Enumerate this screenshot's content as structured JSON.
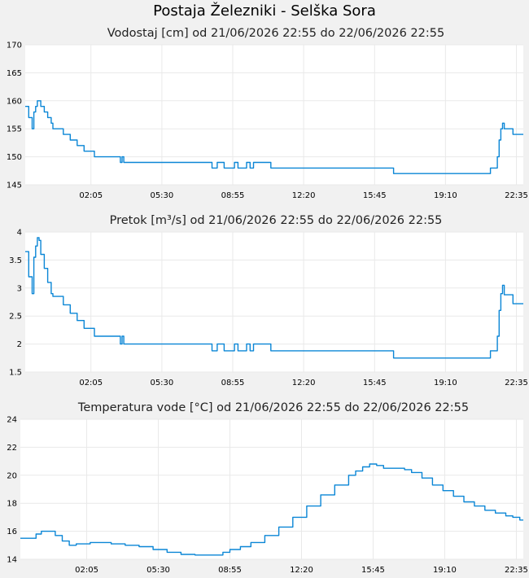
{
  "page": {
    "title": "Postaja Železniki - Selška Sora",
    "series_color": "#0a86d6"
  },
  "chart_data": [
    {
      "type": "line",
      "title": "Vodostaj [cm] od 21/06/2026 22:55 do 22/06/2026 22:55",
      "xlabel": "",
      "ylabel": "",
      "xlim": [
        0,
        1440
      ],
      "ylim": [
        145,
        170
      ],
      "yticks": [
        145,
        150,
        155,
        160,
        165,
        170
      ],
      "ytick_labels": [
        "145",
        "150",
        "155",
        "160",
        "165",
        "170"
      ],
      "xticks": [
        190,
        395,
        600,
        805,
        1010,
        1215,
        1420
      ],
      "xtick_labels": [
        "02:05",
        "05:30",
        "08:55",
        "12:20",
        "15:45",
        "19:10",
        "22:35"
      ],
      "grid": true,
      "series": [
        {
          "x": [
            0,
            10,
            20,
            25,
            30,
            35,
            40,
            45,
            55,
            65,
            75,
            80,
            90,
            110,
            130,
            150,
            170,
            185,
            200,
            215,
            260,
            275,
            280,
            285,
            300,
            420,
            530,
            540,
            550,
            555,
            575,
            600,
            605,
            615,
            630,
            640,
            650,
            660,
            670,
            700,
            710,
            720,
            1060,
            1065,
            1250,
            1340,
            1345,
            1360,
            1365,
            1370,
            1375,
            1380,
            1385,
            1400,
            1410,
            1440
          ],
          "y": [
            159,
            157,
            155,
            158,
            159,
            160,
            160,
            159,
            158,
            157,
            156,
            155,
            155,
            154,
            153,
            152,
            151,
            151,
            150,
            150,
            150,
            149,
            150,
            149,
            149,
            149,
            149,
            148,
            148,
            149,
            148,
            148,
            149,
            148,
            148,
            149,
            148,
            149,
            149,
            149,
            148,
            148,
            148,
            147,
            147,
            147,
            148,
            148,
            150,
            153,
            155,
            156,
            155,
            155,
            154,
            154
          ]
        }
      ]
    },
    {
      "type": "line",
      "title": "Pretok [m³/s] od 21/06/2026 22:55 do 22/06/2026 22:55",
      "xlabel": "",
      "ylabel": "",
      "xlim": [
        0,
        1440
      ],
      "ylim": [
        1.5,
        4
      ],
      "yticks": [
        1.5,
        2,
        2.5,
        3,
        3.5,
        4
      ],
      "ytick_labels": [
        "1.5",
        "2",
        "2.5",
        "3",
        "3.5",
        "4"
      ],
      "xticks": [
        190,
        395,
        600,
        805,
        1010,
        1215,
        1420
      ],
      "xtick_labels": [
        "02:05",
        "05:30",
        "08:55",
        "12:20",
        "15:45",
        "19:10",
        "22:35"
      ],
      "grid": true,
      "series": [
        {
          "x": [
            0,
            10,
            20,
            25,
            30,
            35,
            40,
            45,
            55,
            65,
            75,
            80,
            90,
            110,
            130,
            150,
            170,
            185,
            200,
            215,
            260,
            275,
            280,
            285,
            300,
            420,
            530,
            540,
            550,
            555,
            575,
            600,
            605,
            615,
            630,
            640,
            650,
            660,
            670,
            700,
            710,
            720,
            1060,
            1065,
            1250,
            1340,
            1345,
            1360,
            1365,
            1370,
            1375,
            1380,
            1385,
            1400,
            1410,
            1440
          ],
          "y": [
            3.65,
            3.2,
            2.9,
            3.55,
            3.75,
            3.9,
            3.85,
            3.6,
            3.35,
            3.1,
            2.9,
            2.85,
            2.85,
            2.7,
            2.55,
            2.42,
            2.28,
            2.28,
            2.14,
            2.14,
            2.14,
            2.0,
            2.14,
            2.0,
            2.0,
            2.0,
            2.0,
            1.88,
            1.88,
            2.0,
            1.88,
            1.88,
            2.0,
            1.88,
            1.88,
            2.0,
            1.88,
            2.0,
            2.0,
            2.0,
            1.88,
            1.88,
            1.88,
            1.75,
            1.75,
            1.75,
            1.88,
            1.88,
            2.14,
            2.6,
            2.9,
            3.05,
            2.88,
            2.88,
            2.72,
            2.72
          ]
        }
      ]
    },
    {
      "type": "line",
      "title": "Temperatura vode [°C] od 21/06/2026 22:55 do 22/06/2026 22:55",
      "xlabel": "",
      "ylabel": "",
      "xlim": [
        0,
        1440
      ],
      "ylim": [
        14,
        24
      ],
      "yticks": [
        14,
        16,
        18,
        20,
        22,
        24
      ],
      "ytick_labels": [
        "14",
        "16",
        "18",
        "20",
        "22",
        "24"
      ],
      "xticks": [
        190,
        395,
        600,
        805,
        1010,
        1215,
        1420
      ],
      "xtick_labels": [
        "02:05",
        "05:30",
        "08:55",
        "12:20",
        "15:45",
        "19:10",
        "22:35"
      ],
      "grid": true,
      "series": [
        {
          "x": [
            0,
            25,
            45,
            60,
            80,
            100,
            120,
            140,
            160,
            180,
            200,
            230,
            260,
            300,
            340,
            380,
            420,
            460,
            500,
            540,
            560,
            580,
            600,
            630,
            660,
            700,
            740,
            780,
            820,
            860,
            900,
            940,
            960,
            980,
            1000,
            1020,
            1040,
            1060,
            1080,
            1100,
            1120,
            1150,
            1180,
            1210,
            1240,
            1270,
            1300,
            1330,
            1360,
            1390,
            1410,
            1430,
            1440
          ],
          "y": [
            15.5,
            15.5,
            15.8,
            16.0,
            16.0,
            15.7,
            15.3,
            15.0,
            15.1,
            15.1,
            15.2,
            15.2,
            15.1,
            15.0,
            14.9,
            14.7,
            14.5,
            14.35,
            14.3,
            14.3,
            14.3,
            14.5,
            14.7,
            14.9,
            15.2,
            15.7,
            16.3,
            17.0,
            17.8,
            18.6,
            19.3,
            20.0,
            20.3,
            20.6,
            20.8,
            20.7,
            20.5,
            20.5,
            20.5,
            20.4,
            20.2,
            19.8,
            19.3,
            18.9,
            18.5,
            18.1,
            17.8,
            17.5,
            17.3,
            17.1,
            17.0,
            16.8,
            16.8
          ]
        }
      ]
    }
  ]
}
